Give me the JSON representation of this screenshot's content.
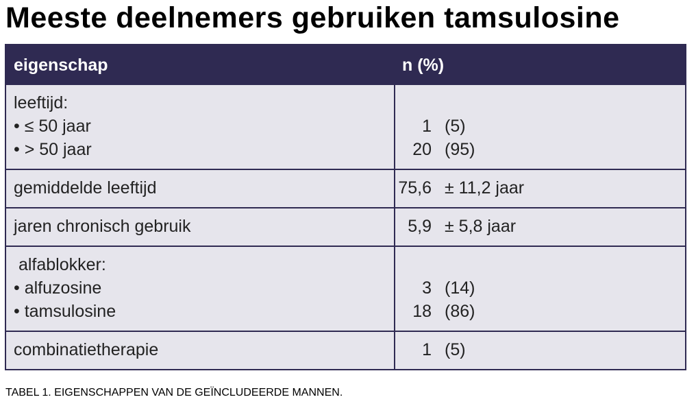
{
  "title": "Meeste deelnemers gebruiken tamsulosine",
  "table": {
    "header": [
      "eigenschap",
      "n (%)"
    ],
    "rows": [
      {
        "label": [
          "leeftijd:",
          "• ≤ 50 jaar",
          "• > 50 jaar"
        ],
        "values": [
          [
            "1",
            "(5)"
          ],
          [
            "20",
            "(95)"
          ]
        ]
      },
      {
        "label": [
          "gemiddelde leeftijd"
        ],
        "values": [
          [
            "75,6",
            "± 11,2 jaar"
          ]
        ]
      },
      {
        "label": [
          "jaren chronisch gebruik"
        ],
        "values": [
          [
            "5,9",
            "± 5,8 jaar"
          ]
        ]
      },
      {
        "label": [
          " alfablokker:",
          "• alfuzosine",
          "• tamsulosine"
        ],
        "values": [
          [
            "3",
            "(14)"
          ],
          [
            "18",
            "(86)"
          ]
        ]
      },
      {
        "label": [
          "combinatietherapie"
        ],
        "values": [
          [
            "1",
            "(5)"
          ]
        ]
      }
    ]
  },
  "caption": "TABEL 1. EIGENSCHAPPEN VAN DE GEÏNCLUDEERDE MANNEN."
}
